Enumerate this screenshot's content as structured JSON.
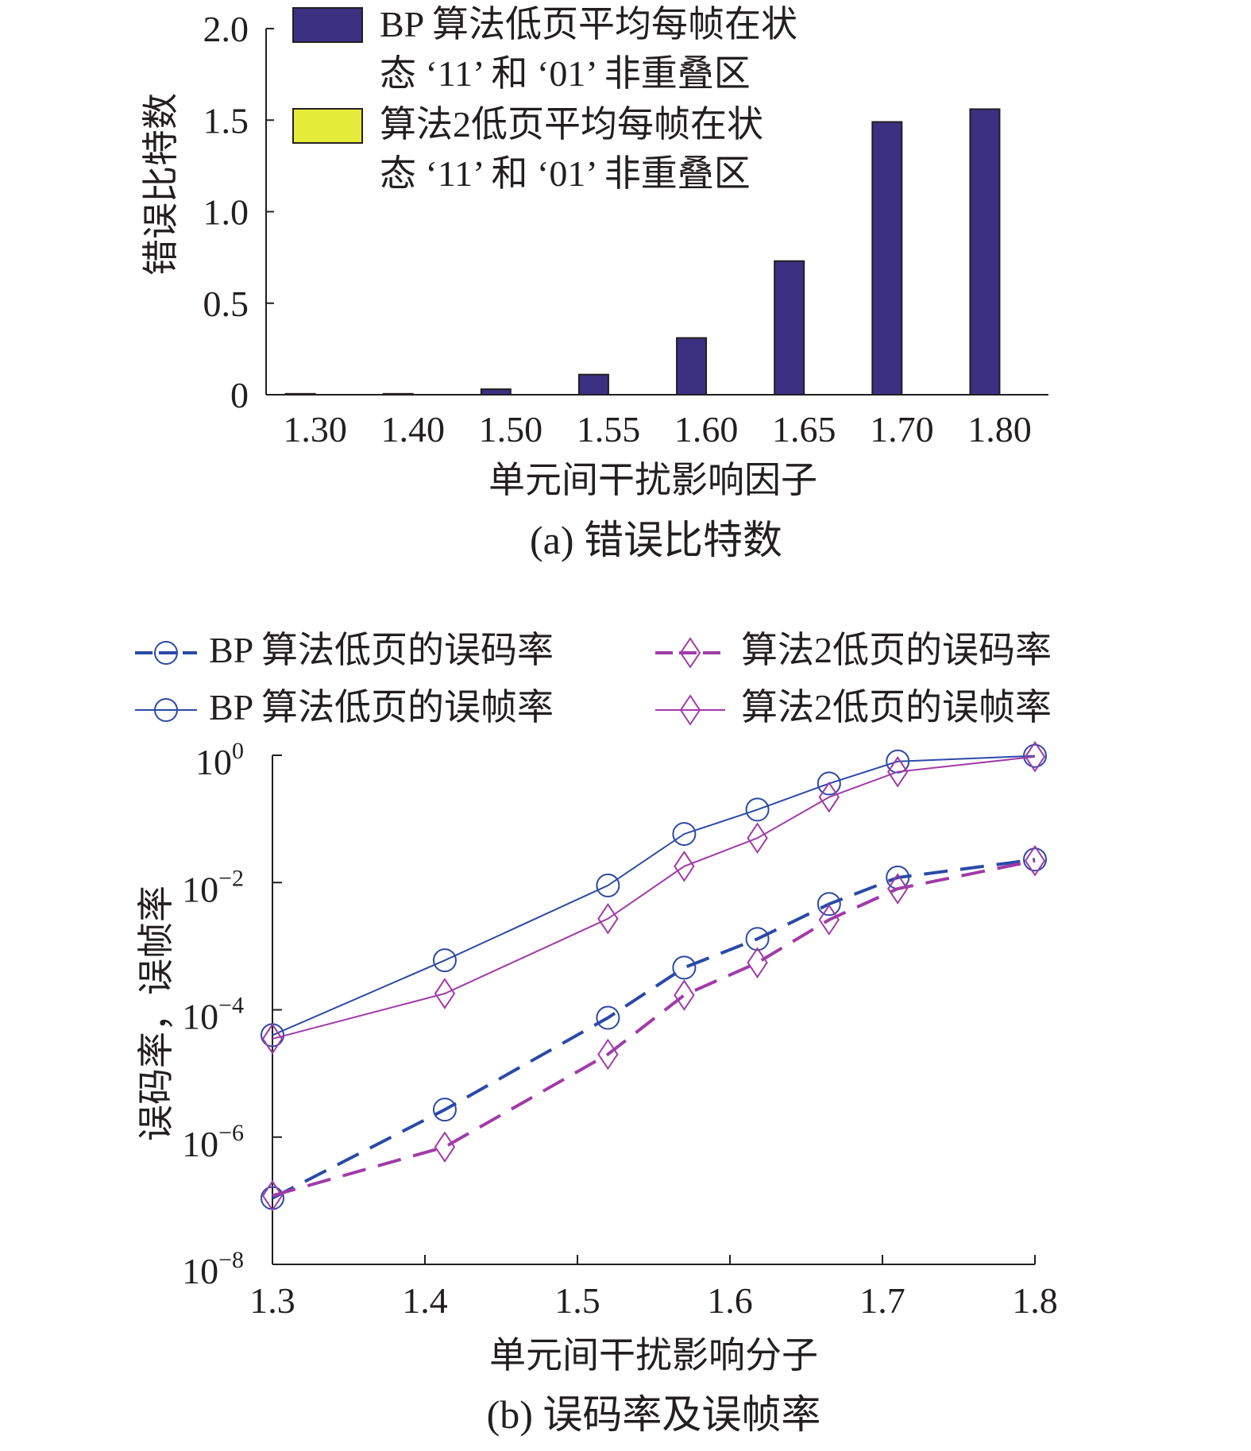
{
  "chart_data": [
    {
      "type": "bar",
      "caption": "(a) 错误比特数",
      "xlabel": "单元间干扰影响因子",
      "ylabel": "错误比特数",
      "categories": [
        "1.30",
        "1.40",
        "1.50",
        "1.55",
        "1.60",
        "1.65",
        "1.70",
        "1.80"
      ],
      "ylim": [
        0,
        2.0
      ],
      "yticks": [
        "0",
        "0.5",
        "1.0",
        "1.5",
        "2.0"
      ],
      "ytick_values": [
        0,
        0.5,
        1.0,
        1.5,
        2.0
      ],
      "legend_position": "top-left",
      "series": [
        {
          "name_lines": [
            "BP 算法低页平均每帧在状",
            "态 ‘11’ 和 ‘01’ 非重叠区"
          ],
          "color": "#3c3082",
          "values": [
            0.005,
            0.005,
            0.03,
            0.11,
            0.31,
            0.73,
            1.49,
            1.56
          ]
        },
        {
          "name_lines": [
            "算法2低页平均每帧在状",
            "态 ‘11’ 和 ‘01’ 非重叠区"
          ],
          "color": "#e6ec3a",
          "values": [
            0,
            0,
            0,
            0,
            0,
            0,
            0,
            0
          ]
        }
      ]
    },
    {
      "type": "line",
      "caption": "(b) 误码率及误帧率",
      "xlabel": "单元间干扰影响分子",
      "ylabel": "误码率，误帧率",
      "yscale": "log",
      "xlim": [
        1.3,
        1.8
      ],
      "xticks": [
        "1.3",
        "1.4",
        "1.5",
        "1.6",
        "1.7",
        "1.8"
      ],
      "xtick_values": [
        1.3,
        1.4,
        1.5,
        1.6,
        1.7,
        1.8
      ],
      "ylim": [
        1e-08,
        1
      ],
      "yticks": [
        {
          "base": "10",
          "exp": "0",
          "value": 1
        },
        {
          "base": "10",
          "exp": "−2",
          "value": 0.01
        },
        {
          "base": "10",
          "exp": "−4",
          "value": 0.0001
        },
        {
          "base": "10",
          "exp": "−6",
          "value": 1e-06
        },
        {
          "base": "10",
          "exp": "−8",
          "value": 1e-08
        }
      ],
      "x": [
        1.3,
        1.413,
        1.52,
        1.57,
        1.618,
        1.665,
        1.71,
        1.8
      ],
      "legend_position": "top",
      "series": [
        {
          "name": "BP 算法低页的误码率",
          "color": "#2b4aa6",
          "dash": "dashed",
          "marker": "circle",
          "values": [
            1.1e-07,
            2.7e-06,
            7.5e-05,
            0.00046,
            0.0013,
            0.0046,
            0.012,
            0.023
          ]
        },
        {
          "name": "BP 算法低页的误帧率",
          "color": "#2b4aa6",
          "dash": "solid",
          "marker": "circle",
          "values": [
            4e-05,
            0.0006,
            0.009,
            0.058,
            0.14,
            0.36,
            0.8,
            0.98
          ]
        },
        {
          "name": "算法2低页的误码率",
          "color": "#a13ba8",
          "dash": "dashed",
          "marker": "diamond",
          "values": [
            1.2e-07,
            7e-07,
            2e-05,
            0.00017,
            0.00055,
            0.0026,
            0.008,
            0.022
          ]
        },
        {
          "name": "算法2低页的误帧率",
          "color": "#a13ba8",
          "dash": "solid",
          "marker": "diamond",
          "values": [
            3.5e-05,
            0.00018,
            0.0027,
            0.018,
            0.05,
            0.22,
            0.55,
            0.95
          ]
        }
      ]
    }
  ]
}
